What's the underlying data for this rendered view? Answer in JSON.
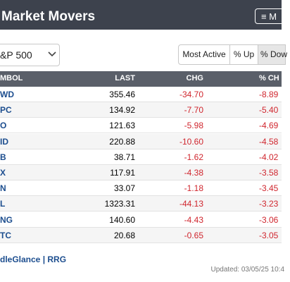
{
  "header": {
    "title": "Market Movers",
    "menu": "≡ M"
  },
  "controls": {
    "index": "&P 500",
    "tabs": [
      "Most Active",
      "% Up",
      "% Dow"
    ]
  },
  "table": {
    "columns": [
      "MBOL",
      "LAST",
      "CHG",
      "% CH"
    ],
    "rows": [
      [
        "WD",
        "355.46",
        "-34.70",
        "-8.89"
      ],
      [
        "PC",
        "134.92",
        "-7.70",
        "-5.40"
      ],
      [
        "O",
        "121.63",
        "-5.98",
        "-4.69"
      ],
      [
        "ID",
        "220.88",
        "-10.60",
        "-4.58"
      ],
      [
        "B",
        "38.71",
        "-1.62",
        "-4.02"
      ],
      [
        "X",
        "117.91",
        "-4.38",
        "-3.58"
      ],
      [
        "N",
        "33.07",
        "-1.18",
        "-3.45"
      ],
      [
        "L",
        "1323.31",
        "-44.13",
        "-3.23"
      ],
      [
        "NG",
        "140.60",
        "-4.43",
        "-3.06"
      ],
      [
        "TC",
        "20.68",
        "-0.65",
        "-3.05"
      ]
    ]
  },
  "footer": {
    "links": "dleGlance | RRG",
    "updated": "Updated: 03/05/25 10:4"
  }
}
